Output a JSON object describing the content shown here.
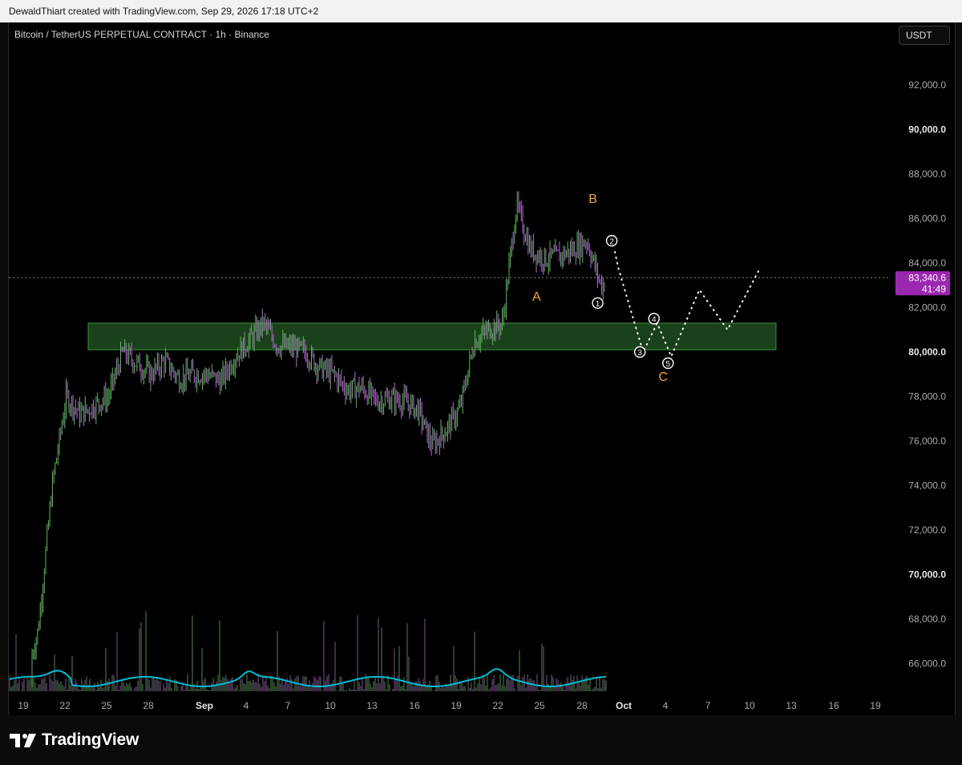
{
  "header": {
    "attribution": "DewaldThiart created with TradingView.com, Sep 29, 2026 17:18 UTC+2"
  },
  "chart_header": {
    "symbol": "Bitcoin / TetherUS PERPETUAL CONTRACT · 1h · Binance",
    "currency": "USDT"
  },
  "price_scale": {
    "labels": [
      {
        "value": 92000,
        "text": "92,000.0",
        "bold": false
      },
      {
        "value": 90000,
        "text": "90,000.0",
        "bold": true
      },
      {
        "value": 88000,
        "text": "88,000.0",
        "bold": false
      },
      {
        "value": 86000,
        "text": "86,000.0",
        "bold": false
      },
      {
        "value": 84000,
        "text": "84,000.0",
        "bold": false
      },
      {
        "value": 82000,
        "text": "82,000.0",
        "bold": false
      },
      {
        "value": 80000,
        "text": "80,000.0",
        "bold": true
      },
      {
        "value": 78000,
        "text": "78,000.0",
        "bold": false
      },
      {
        "value": 76000,
        "text": "76,000.0",
        "bold": false
      },
      {
        "value": 74000,
        "text": "74,000.0",
        "bold": false
      },
      {
        "value": 72000,
        "text": "72,000.0",
        "bold": false
      },
      {
        "value": 70000,
        "text": "70,000.0",
        "bold": true
      },
      {
        "value": 68000,
        "text": "68,000.0",
        "bold": false
      },
      {
        "value": 66000,
        "text": "66,000.0",
        "bold": false
      }
    ],
    "current_price": "83,340.6",
    "countdown": "41:49",
    "current_price_value": 83340.6,
    "current_color": "#9c27b0"
  },
  "time_axis": {
    "labels": [
      {
        "text": "19",
        "bold": false
      },
      {
        "text": "22",
        "bold": false
      },
      {
        "text": "25",
        "bold": false
      },
      {
        "text": "28",
        "bold": false
      },
      {
        "text": "Sep",
        "bold": true
      },
      {
        "text": "4",
        "bold": false
      },
      {
        "text": "7",
        "bold": false
      },
      {
        "text": "10",
        "bold": false
      },
      {
        "text": "13",
        "bold": false
      },
      {
        "text": "16",
        "bold": false
      },
      {
        "text": "19",
        "bold": false
      },
      {
        "text": "22",
        "bold": false
      },
      {
        "text": "25",
        "bold": false
      },
      {
        "text": "28",
        "bold": false
      },
      {
        "text": "Oct",
        "bold": true
      },
      {
        "text": "4",
        "bold": false
      },
      {
        "text": "7",
        "bold": false
      },
      {
        "text": "10",
        "bold": false
      },
      {
        "text": "13",
        "bold": false
      },
      {
        "text": "16",
        "bold": false
      },
      {
        "text": "19",
        "bold": false
      }
    ]
  },
  "chart_data": {
    "type": "line",
    "title": "",
    "ylim": [
      64500,
      94000
    ],
    "series": [
      {
        "style": "candlestick-approximation",
        "x_date": [
          "Aug 18",
          "Aug 19",
          "Aug 20",
          "Aug 21",
          "Aug 22",
          "Aug 23",
          "Aug 24",
          "Aug 25",
          "Aug 26",
          "Aug 27",
          "Aug 28",
          "Aug 29",
          "Aug 30",
          "Aug 31",
          "Sep 1",
          "Sep 2",
          "Sep 3",
          "Sep 4",
          "Sep 5",
          "Sep 6",
          "Sep 7",
          "Sep 8",
          "Sep 9",
          "Sep 10",
          "Sep 11",
          "Sep 12",
          "Sep 13",
          "Sep 14",
          "Sep 15",
          "Sep 16",
          "Sep 17",
          "Sep 18",
          "Sep 19",
          "Sep 20",
          "Sep 21",
          "Sep 22",
          "Sep 23",
          "Sep 24",
          "Sep 25",
          "Sep 26",
          "Sep 27",
          "Sep 28",
          "Sep 29"
        ],
        "values": [
          65000,
          67500,
          74000,
          78000,
          77200,
          77600,
          78000,
          80000,
          79500,
          79000,
          79600,
          78800,
          79000,
          79000,
          78700,
          79800,
          80500,
          81300,
          80300,
          80200,
          80000,
          79300,
          79000,
          78300,
          78400,
          77800,
          77900,
          77800,
          77400,
          75800,
          76500,
          77500,
          80500,
          81000,
          81300,
          86600,
          84600,
          84200,
          84300,
          84600,
          85000,
          83000,
          83300
        ],
        "bull_color": "#5cb85c",
        "bear_color": "#b26bd1"
      }
    ],
    "zone": {
      "from": 80100,
      "to": 81300,
      "x_start": "Aug 20",
      "x_end": "Oct 12",
      "color": "#1f4d1f"
    },
    "projection": [
      {
        "x": "Sep 29",
        "y": 84500
      },
      {
        "x": "Sep 29",
        "y": 83800
      },
      {
        "x": "Oct 1",
        "y": 80000
      },
      {
        "x": "Oct 2",
        "y": 81300
      },
      {
        "x": "Oct 3",
        "y": 79800
      },
      {
        "x": "Oct 5",
        "y": 82800
      },
      {
        "x": "Oct 7",
        "y": 81000
      },
      {
        "x": "Oct 8",
        "y": 83700
      }
    ],
    "wave_labels": [
      {
        "text": "A",
        "x": "Sep 24",
        "y": 82300,
        "color": "#f5a623"
      },
      {
        "text": "B",
        "x": "Sep 28",
        "y": 86700,
        "color": "#f5a623"
      },
      {
        "text": "C",
        "x": "Oct 3",
        "y": 78700,
        "color": "#f5a623"
      }
    ],
    "wave_circles": [
      {
        "text": "1",
        "x": "Sep 28",
        "y": 82200
      },
      {
        "text": "2",
        "x": "Sep 29",
        "y": 85000
      },
      {
        "text": "3",
        "x": "Oct 1",
        "y": 80000
      },
      {
        "text": "4",
        "x": "Oct 2",
        "y": 81500
      },
      {
        "text": "5",
        "x": "Oct 3",
        "y": 79500
      }
    ],
    "volume_line_color": "#00bcd4"
  },
  "branding": {
    "logo_text": "TradingView"
  }
}
